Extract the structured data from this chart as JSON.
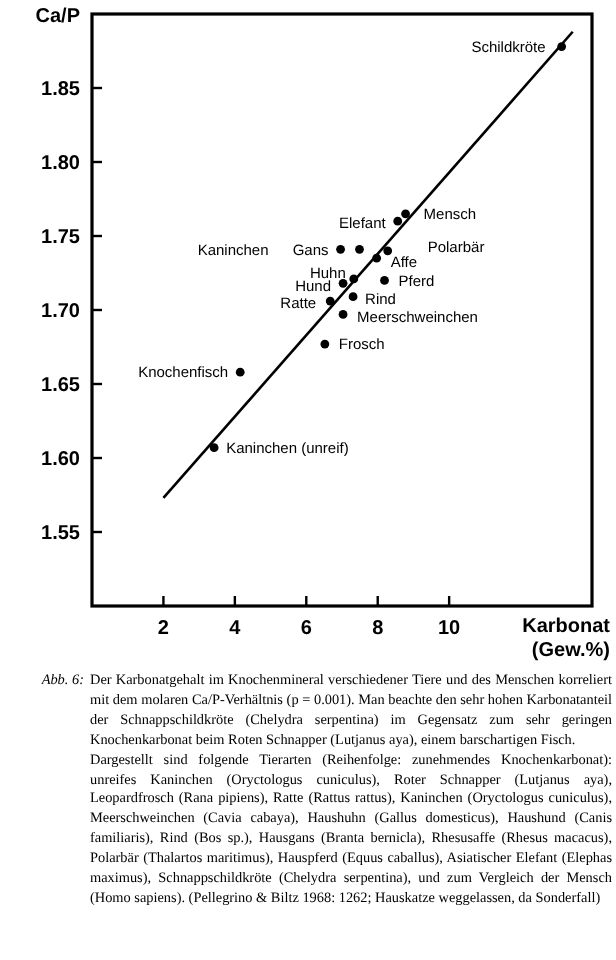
{
  "chart_data": {
    "type": "scatter",
    "xlabel": "Karbonat\n(Gew.%)",
    "ylabel": "Ca/P",
    "xlim": [
      0,
      14
    ],
    "ylim": [
      1.5,
      1.9
    ],
    "xticks": [
      2,
      4,
      6,
      8,
      10
    ],
    "yticks": [
      {
        "value": 1.55,
        "label": "1.55"
      },
      {
        "value": 1.6,
        "label": "1.60"
      },
      {
        "value": 1.65,
        "label": "1.65"
      },
      {
        "value": 1.7,
        "label": "1.70"
      },
      {
        "value": 1.75,
        "label": "1.75"
      },
      {
        "value": 1.8,
        "label": "1.80"
      },
      {
        "value": 1.85,
        "label": "1.85"
      }
    ],
    "grid": false,
    "series": [
      {
        "type": "scatter",
        "marker": "circle",
        "color": "#000000",
        "x": [
          13.15,
          8.78,
          8.56,
          6.96,
          7.49,
          7.97,
          8.28,
          7.33,
          7.03,
          8.19,
          7.31,
          6.67,
          7.03,
          6.52,
          4.15,
          3.42
        ],
        "values": [
          1.878,
          1.765,
          1.76,
          1.741,
          1.741,
          1.735,
          1.74,
          1.721,
          1.718,
          1.72,
          1.709,
          1.706,
          1.697,
          1.677,
          1.658,
          1.607
        ]
      },
      {
        "type": "line",
        "marker": "none",
        "color": "#000000",
        "x": [
          2,
          13.46
        ],
        "values": [
          1.573,
          1.888
        ]
      }
    ],
    "annotations": [
      {
        "text": "Schildkröte",
        "x": 13.15,
        "y": 1.878
      },
      {
        "text": "Mensch",
        "x": 8.78,
        "y": 1.765
      },
      {
        "text": "Elefant",
        "x": 8.56,
        "y": 1.76
      },
      "Kaninchen",
      "Gans",
      {
        "text": "Affe",
        "x": 7.97,
        "y": 1.735
      },
      {
        "text": "Polarbär",
        "x": 8.28,
        "y": 1.74
      },
      {
        "text": "Huhn",
        "x": 7.33,
        "y": 1.721
      },
      {
        "text": "Hund",
        "x": 7.03,
        "y": 1.718
      },
      {
        "text": "Pferd",
        "x": 8.19,
        "y": 1.72
      },
      {
        "text": "Rind",
        "x": 7.31,
        "y": 1.709
      },
      {
        "text": "Ratte",
        "x": 6.67,
        "y": 1.706
      },
      {
        "text": "Meerschweinchen",
        "x": 7.03,
        "y": 1.697
      },
      {
        "text": "Frosch",
        "x": 6.52,
        "y": 1.677
      },
      {
        "text": "Knochenfisch",
        "x": 4.15,
        "y": 1.658
      },
      {
        "text": "Kaninchen (unreif)",
        "x": 3.42,
        "y": 1.607
      },
      "Abb. 6:",
      "Der Karbonatgehalt im Knochenmineral verschiedener Tiere und des Menschen korreliert mit dem molaren Ca/P-Verhältnis (p = 0.001). Man beachte den sehr hohen Karbonatanteil der Schnappschildkröte (Chelydra serpentina) im Gegensatz zum sehr geringen Knochenkarbonat beim Roten Schnapper (Lutjanus aya), einem barschartigen Fisch.",
      "Dargestellt sind folgende Tierarten (Reihenfolge: zunehmendes Knochenkarbonat): unreifes Kaninchen (Oryctologus cuniculus), Roter Schnapper (Lutjanus aya), Leopardfrosch (Rana pipiens), Ratte (Rattus rattus), Kaninchen (Oryctologus cuniculus), Meerschweinchen (Cavia cabaya), Haushuhn (Gallus domesticus), Haushund (Canis familiaris), Rind (Bos sp.), Hausgans (Branta bernicla), Rhesusaffe (Rhesus macacus), Polarbär (Thalartos maritimus), Hauspferd (Equus caballus), Asiatischer Elefant (Elephas maximus), Schnappschildkröte (Chelydra serpentina), und zum Vergleich der Mensch (Homo sapiens). (Pellegrino & Biltz 1968: 1262; Hauskatze weggelassen, da Sonderfall)"
    ]
  }
}
